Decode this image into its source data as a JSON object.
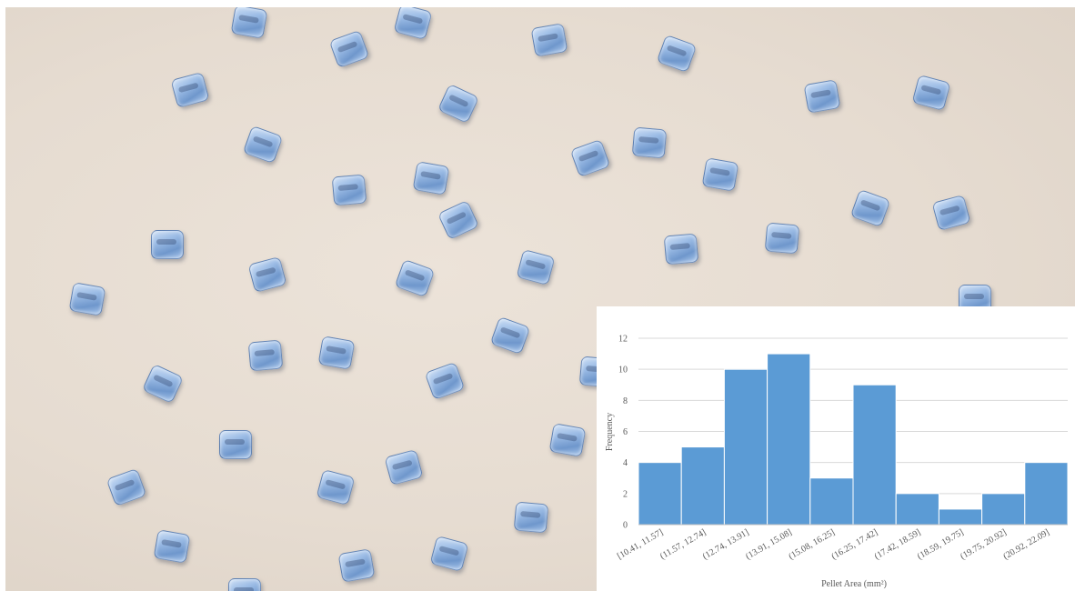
{
  "chart_data": {
    "type": "bar",
    "title": "",
    "xlabel": "Pellet Area (mm²)",
    "ylabel": "Frequency",
    "categories": [
      "[10.41, 11.57]",
      "(11.57, 12.74]",
      "(12.74, 13.91]",
      "(13.91, 15.08]",
      "(15.08, 16.25]",
      "(16.25, 17.42]",
      "(17.42, 18.59]",
      "(18.59, 19.75]",
      "(19.75, 20.92]",
      "(20.92, 22.09]"
    ],
    "values": [
      4,
      5,
      10,
      11,
      3,
      9,
      2,
      1,
      2,
      4
    ],
    "ylim": [
      0,
      12
    ],
    "yticks": [
      0,
      2,
      4,
      6,
      8,
      10,
      12
    ],
    "grid": true,
    "legend": "none",
    "bar_color": "#5b9bd5",
    "gap_width": 0
  },
  "colors": {
    "bar": "#5b9bd5",
    "bar_edge": "#ffffff",
    "gridline": "#d9d9d9",
    "axis": "#bfbfbf",
    "text": "#595959",
    "background_photo": "#e6dcd1",
    "pellet": "#8fb2e0"
  }
}
